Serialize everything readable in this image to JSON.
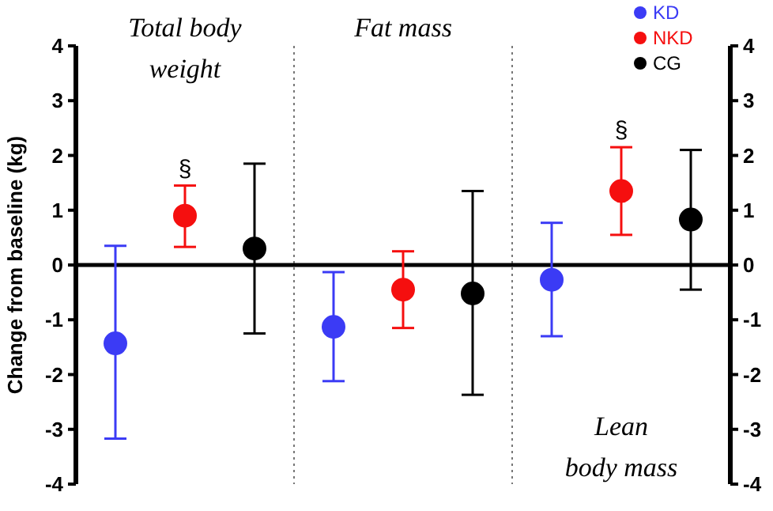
{
  "chart_data": {
    "type": "scatter",
    "ylabel": "Change from baseline (kg)",
    "categories": [
      "Total body weight",
      "Fat mass",
      "Lean body mass"
    ],
    "series": [
      {
        "name": "KD",
        "color": "#3b3bf5",
        "values": [
          -1.43,
          -1.13,
          -0.27
        ],
        "errors": [
          [
            -3.17,
            0.35
          ],
          [
            -2.12,
            -0.13
          ],
          [
            -1.3,
            0.77
          ]
        ]
      },
      {
        "name": "NKD",
        "color": "#f50f0f",
        "values": [
          0.9,
          -0.45,
          1.35
        ],
        "errors": [
          [
            0.33,
            1.45
          ],
          [
            -1.15,
            0.25
          ],
          [
            0.55,
            2.15
          ]
        ]
      },
      {
        "name": "CG",
        "color": "#000000",
        "values": [
          0.3,
          -0.52,
          0.83
        ],
        "errors": [
          [
            -1.25,
            1.85
          ],
          [
            -2.37,
            1.35
          ],
          [
            -0.45,
            2.1
          ]
        ]
      }
    ],
    "ylim": [
      -4,
      4
    ],
    "yticks": [
      -4,
      -3,
      -2,
      -1,
      0,
      1,
      2,
      3,
      4
    ],
    "y2lim": [
      -4,
      4
    ],
    "y2ticks": [
      -4,
      -3,
      -2,
      -1,
      0,
      1,
      2,
      3,
      4
    ],
    "annotations": [
      {
        "text": "§",
        "x": "Total body weight",
        "y": 1.45
      },
      {
        "text": "§",
        "x": "Lean body mass",
        "y": 2.15
      }
    ],
    "legend": "top right",
    "marker": "circle",
    "grid": false
  }
}
